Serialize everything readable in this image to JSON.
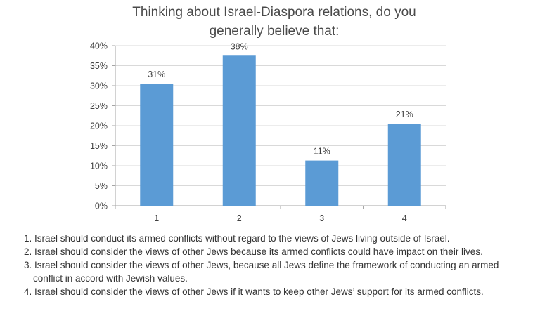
{
  "chart_data": {
    "type": "bar",
    "title_line1": "Thinking about Israel-Diaspora relations, do you",
    "title_line2": "generally believe that:",
    "categories": [
      "1",
      "2",
      "3",
      "4"
    ],
    "values": [
      31,
      38,
      11,
      21
    ],
    "value_labels": [
      "31%",
      "38%",
      "11%",
      "21%"
    ],
    "plotted_values": [
      30.5,
      37.5,
      11.3,
      20.5
    ],
    "y_ticks": [
      "0%",
      "5%",
      "10%",
      "15%",
      "20%",
      "25%",
      "30%",
      "35%",
      "40%"
    ],
    "ylim": [
      0,
      40
    ],
    "grid": true,
    "bar_color": "#5b9bd5",
    "grid_color": "#d9d9d9",
    "axis_color": "#a6a6a6"
  },
  "notes": [
    "1. Israel should conduct its armed conflicts without regard to the views of Jews living outside of Israel.",
    "2. Israel should consider the views of other Jews because its armed conflicts could have impact on their lives.",
    "3. Israel should consider the views of other Jews, because all Jews define the framework of conducting an armed conflict in accord with Jewish values.",
    "4. Israel should consider the views of other Jews if it wants to keep other Jews’ support for its armed conflicts."
  ]
}
